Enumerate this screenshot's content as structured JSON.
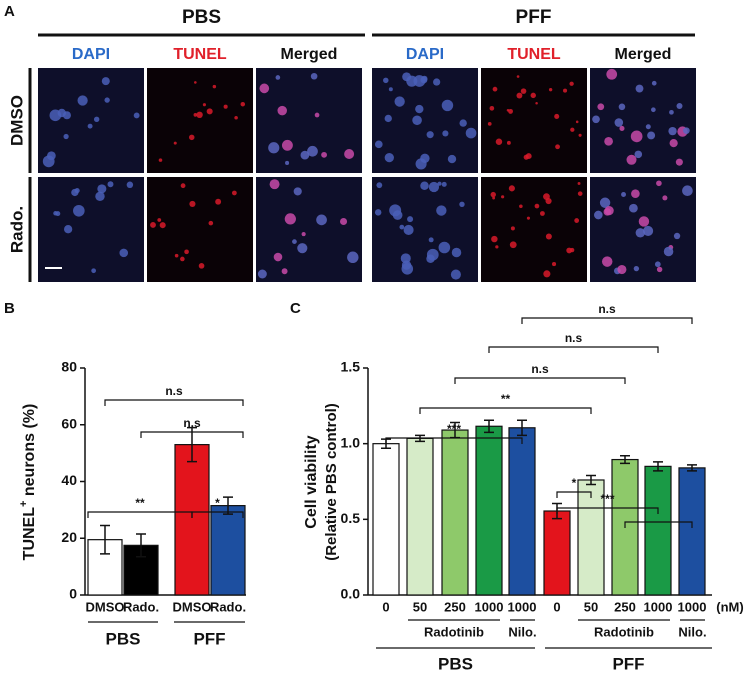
{
  "panel_a": {
    "label": "A",
    "groups": [
      "PBS",
      "PFF"
    ],
    "columns": [
      "DAPI",
      "TUNEL",
      "Merged",
      "DAPI",
      "TUNEL",
      "Merged"
    ],
    "rows": [
      "DMSO",
      "Rado."
    ]
  },
  "panel_labels": [
    "B",
    "C"
  ],
  "chart_data": [
    {
      "type": "bar",
      "categories": [
        "DMSO",
        "Rado.",
        "DMSO",
        "Rado."
      ],
      "groups": [
        "PBS",
        "PFF"
      ],
      "values": [
        19.5,
        17.5,
        53,
        31.5
      ],
      "errors": [
        5,
        4,
        6,
        3
      ],
      "colors": [
        "#ffffff",
        "#000000",
        "#e3141c",
        "#1d4fa0"
      ],
      "ylim": [
        0,
        80
      ],
      "yticks": [
        0,
        20,
        40,
        60,
        80
      ],
      "ylabel": [
        "TUNEL",
        "+",
        " neurons (%)"
      ],
      "annotations": [
        "n.s",
        "n.s",
        "**",
        "*"
      ]
    },
    {
      "type": "bar",
      "categories": [
        "0",
        "50",
        "250",
        "1000",
        "1000",
        "0",
        "50",
        "250",
        "1000",
        "1000"
      ],
      "unit": "(nM)",
      "subgroups": [
        "Radotinib",
        "Nilo.",
        "Radotinib",
        "Nilo."
      ],
      "groups": [
        "PBS",
        "PFF"
      ],
      "values": [
        1.0,
        1.035,
        1.09,
        1.115,
        1.105,
        0.555,
        0.76,
        0.895,
        0.85,
        0.84
      ],
      "errors": [
        0.03,
        0.02,
        0.05,
        0.04,
        0.05,
        0.05,
        0.03,
        0.025,
        0.03,
        0.02
      ],
      "colors": [
        "#ffffff",
        "#d6ebc8",
        "#8ec96a",
        "#1a9a46",
        "#1d4fa0",
        "#e3141c",
        "#d6ebc8",
        "#8ec96a",
        "#1a9a46",
        "#1d4fa0"
      ],
      "ylim": [
        0,
        1.5
      ],
      "yticks": [
        {
          "value": 0,
          "label": "0.0"
        },
        {
          "value": 0.5,
          "label": "0.5"
        },
        {
          "value": 1,
          "label": "1.0"
        },
        {
          "value": 1.5,
          "label": "1.5"
        }
      ],
      "ylabel": [
        "Cell viability",
        "(Relative PBS control)"
      ],
      "annotations": [
        "n.s",
        "n.s",
        "n.s",
        "**",
        "***",
        "***",
        "*"
      ]
    }
  ]
}
